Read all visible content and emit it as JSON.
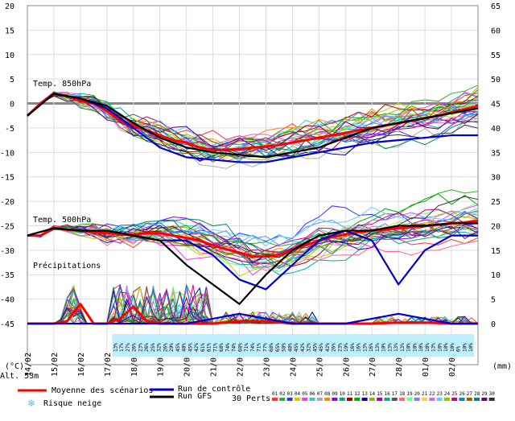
{
  "chart_data": {
    "type": "line",
    "title": "",
    "y_left_unit": "(°C)",
    "y_right_unit": "(mm)",
    "altitude_label": "Alt. 53m",
    "ylim_left": [
      -45,
      20
    ],
    "ylim_right": [
      0,
      65
    ],
    "y_left_ticks": [
      "20",
      "15",
      "10",
      "5",
      "0",
      "-5",
      "-10",
      "-15",
      "-20",
      "-25",
      "-30",
      "-35",
      "-40",
      "-45"
    ],
    "y_right_ticks": [
      "65",
      "60",
      "55",
      "50",
      "45",
      "40",
      "35",
      "30",
      "25",
      "20",
      "15",
      "10",
      "5",
      "0"
    ],
    "x_ticks": [
      "14/02",
      "15/02",
      "16/02",
      "17/02",
      "18/02",
      "19/02",
      "20/02",
      "21/02",
      "22/02",
      "23/02",
      "24/02",
      "25/02",
      "26/02",
      "27/02",
      "28/02",
      "01/03",
      "02/03"
    ],
    "x_range_days": [
      0,
      17
    ],
    "panel_labels": {
      "t850": "Temp. 850hPa",
      "t500": "Temp. 500hPa",
      "precip": "Précipitations"
    },
    "snow_risk_percent": [
      "13%",
      "17%",
      "27%",
      "26%",
      "23%",
      "26%",
      "25%",
      "32%",
      "26%",
      "29%",
      "45%",
      "48%",
      "45%",
      "42%",
      "61%",
      "61%",
      "71%",
      "68%",
      "74%",
      "74%",
      "68%",
      "71%",
      "74%",
      "71%",
      "77%",
      "68%",
      "65%",
      "58%",
      "48%",
      "45%",
      "42%",
      "32%",
      "45%",
      "45%",
      "42%",
      "26%",
      "23%",
      "19%",
      "16%",
      "16%",
      "13%",
      "16%",
      "13%",
      "10%",
      "13%",
      "13%",
      "13%",
      "10%",
      "10%",
      "10%",
      "10%",
      "13%",
      "10%",
      "10%",
      "10%",
      "6%",
      "10%",
      "10%"
    ],
    "series": [
      {
        "name": "Moyenne des scénarios",
        "panel": "t850",
        "color": "#ff0000",
        "x": [
          0,
          0.5,
          1,
          1.5,
          2,
          2.5,
          3,
          3.5,
          4,
          4.5,
          5,
          5.5,
          6,
          6.5,
          7,
          7.5,
          8,
          8.5,
          9,
          9.5,
          10,
          10.5,
          11,
          11.5,
          12,
          12.5,
          13,
          13.5,
          14,
          14.5,
          15,
          15.5,
          16,
          16.5,
          17
        ],
        "y": [
          -2.5,
          0,
          2,
          1.5,
          0.5,
          0,
          -1.5,
          -3.5,
          -4.5,
          -5.5,
          -6.5,
          -7.5,
          -8,
          -9,
          -9.5,
          -9.5,
          -9.3,
          -9,
          -8.8,
          -8.5,
          -8,
          -7.5,
          -7,
          -6.5,
          -6,
          -5.5,
          -5,
          -4.5,
          -4,
          -3.5,
          -3,
          -2.5,
          -1.8,
          -1.2,
          -0.5
        ]
      },
      {
        "name": "Run de contrôle",
        "panel": "t850",
        "color": "#0000cc",
        "x": [
          0,
          1,
          2,
          3,
          4,
          5,
          6,
          7,
          8,
          9,
          10,
          11,
          12,
          13,
          14,
          15,
          16,
          17
        ],
        "y": [
          -2.5,
          2,
          1,
          -1,
          -5,
          -9,
          -11,
          -11.5,
          -12,
          -12,
          -11,
          -10,
          -9,
          -8,
          -7.5,
          -7,
          -6.5,
          -6.5
        ]
      },
      {
        "name": "Run GFS",
        "panel": "t850",
        "color": "#000000",
        "x": [
          0,
          1,
          2,
          3,
          4,
          5,
          6,
          7,
          8,
          9,
          10,
          11,
          12,
          13,
          14,
          15,
          16,
          17
        ],
        "y": [
          -2.5,
          2,
          1,
          -0.5,
          -4,
          -7,
          -9,
          -10,
          -10.5,
          -11,
          -10,
          -9,
          -7,
          -5,
          -4,
          -3,
          -2,
          -1
        ]
      },
      {
        "name": "Moyenne des scénarios",
        "panel": "t500",
        "color": "#ff0000",
        "x": [
          0,
          0.5,
          1,
          1.5,
          2,
          2.5,
          3,
          3.5,
          4,
          4.5,
          5,
          5.5,
          6,
          6.5,
          7,
          7.5,
          8,
          8.5,
          9,
          9.5,
          10,
          10.5,
          11,
          11.5,
          12,
          12.5,
          13,
          13.5,
          14,
          14.5,
          15,
          15.5,
          16,
          16.5,
          17
        ],
        "y": [
          -27,
          -27,
          -25.5,
          -25.8,
          -26,
          -26.3,
          -26.5,
          -26.7,
          -26.8,
          -26.5,
          -26.5,
          -27,
          -27.5,
          -28,
          -29,
          -29.8,
          -30.5,
          -31.3,
          -31.3,
          -31,
          -30,
          -29,
          -28,
          -27.3,
          -26.8,
          -26.3,
          -26,
          -25.8,
          -25.5,
          -25.3,
          -25,
          -24.8,
          -24.5,
          -24.3,
          -24
        ]
      },
      {
        "name": "Run de contrôle",
        "panel": "t500",
        "color": "#0000cc",
        "x": [
          0,
          1,
          2,
          3,
          4,
          5,
          6,
          7,
          8,
          9,
          10,
          11,
          12,
          13,
          14,
          15,
          16,
          17
        ],
        "y": [
          -27,
          -25.5,
          -26,
          -26,
          -27,
          -28,
          -28,
          -31,
          -36,
          -38,
          -33,
          -28,
          -26,
          -28,
          -37,
          -30,
          -27,
          -27
        ]
      },
      {
        "name": "Run GFS",
        "panel": "t500",
        "color": "#000000",
        "x": [
          0,
          1,
          2,
          3,
          4,
          5,
          6,
          7,
          8,
          9,
          10,
          11,
          12,
          13,
          14,
          15,
          16,
          17
        ],
        "y": [
          -27,
          -25.5,
          -26,
          -26,
          -27,
          -28,
          -33,
          -37,
          -41,
          -35,
          -30,
          -27,
          -26,
          -26,
          -25,
          -25,
          -24.5,
          -24.5
        ]
      },
      {
        "name": "Moyenne des scénarios",
        "panel": "precip",
        "color": "#ff0000",
        "x": [
          0,
          1,
          1.5,
          2,
          2.5,
          3,
          3.5,
          4,
          4.5,
          5,
          6,
          7,
          8,
          9,
          10,
          11,
          12,
          13,
          14,
          15,
          16,
          17
        ],
        "y": [
          -45,
          -45,
          -44.5,
          -41,
          -45,
          -45,
          -44,
          -41.5,
          -44.5,
          -45,
          -45,
          -45,
          -44.5,
          -44.5,
          -45,
          -45,
          -45,
          -45,
          -44.8,
          -44.8,
          -45,
          -45
        ]
      },
      {
        "name": "Run de contrôle",
        "panel": "precip",
        "color": "#0000cc",
        "x": [
          0,
          1,
          2,
          3,
          4,
          5,
          6,
          7,
          8,
          9,
          10,
          11,
          12,
          13,
          14,
          15,
          16,
          17
        ],
        "y": [
          -45,
          -45,
          -45,
          -45,
          -45,
          -45,
          -45,
          -44,
          -43,
          -44,
          -45,
          -45,
          -45,
          -44,
          -43,
          -44,
          -45,
          -45
        ]
      }
    ],
    "grid": true
  },
  "legend": {
    "mean": "Moyenne des scénarios",
    "control": "Run de contrôle",
    "gfs": "Run GFS",
    "snow": "Risque neige",
    "perts": "30 Perts.",
    "pert_numbers": [
      "01",
      "02",
      "03",
      "04",
      "05",
      "06",
      "07",
      "08",
      "09",
      "10",
      "11",
      "12",
      "13",
      "14",
      "15",
      "16",
      "17",
      "18",
      "19",
      "20",
      "21",
      "22",
      "23",
      "24",
      "25",
      "26",
      "27",
      "28",
      "29",
      "30"
    ],
    "pert_colors": [
      "#ff3333",
      "#33aa33",
      "#3333ff",
      "#cccc00",
      "#ff33ff",
      "#33cccc",
      "#aaaaaa",
      "#ff8800",
      "#8800ff",
      "#00aa88",
      "#aa0000",
      "#00aa00",
      "#0000aa",
      "#aaaa00",
      "#aa00aa",
      "#00aaaa",
      "#555555",
      "#ff6688",
      "#66ff88",
      "#6688ff",
      "#ffcc66",
      "#cc66ff",
      "#66ccff",
      "#88cc00",
      "#cc0088",
      "#0088cc",
      "#886600",
      "#008866",
      "#660088",
      "#333333"
    ],
    "mean_color": "#ff0000",
    "control_color": "#0000cc",
    "gfs_color": "#000000"
  }
}
